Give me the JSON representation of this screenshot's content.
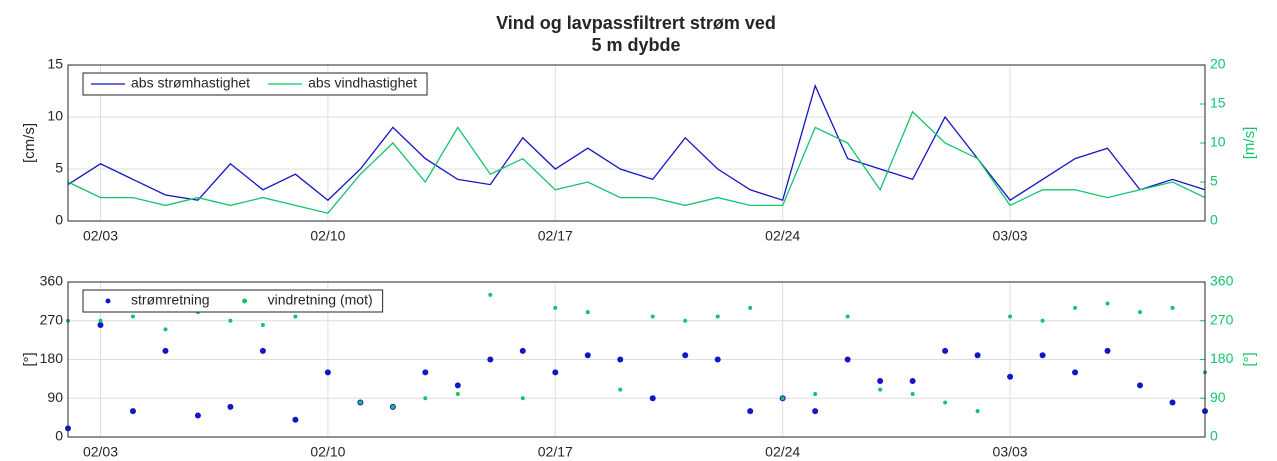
{
  "chart_data": [
    {
      "type": "line",
      "title": [
        "Vind og lavpassfiltrert strøm ved",
        "5 m dybde"
      ],
      "ylabel": "[cm/s]",
      "y2label": "[m/s]",
      "x": [
        "02/02",
        "02/03",
        "02/04",
        "02/05",
        "02/06",
        "02/07",
        "02/08",
        "02/09",
        "02/10",
        "02/11",
        "02/12",
        "02/13",
        "02/14",
        "02/15",
        "02/16",
        "02/17",
        "02/18",
        "02/19",
        "02/20",
        "02/21",
        "02/22",
        "02/23",
        "02/24",
        "02/25",
        "02/26",
        "02/27",
        "02/28",
        "03/01",
        "03/02",
        "03/03",
        "03/04",
        "03/05",
        "03/06",
        "03/07",
        "03/08",
        "03/09"
      ],
      "xlim": [
        "02/02",
        "03/09"
      ],
      "xticks": [
        "02/03",
        "02/10",
        "02/17",
        "02/24",
        "03/03"
      ],
      "ylim": [
        0,
        15
      ],
      "yticks": [
        0,
        5,
        10,
        15
      ],
      "y2lim": [
        0,
        20
      ],
      "y2ticks": [
        0,
        5,
        10,
        15,
        20
      ],
      "grid": true,
      "legend": "northwest",
      "series": [
        {
          "name": "abs strømhastighet",
          "color": "#1414c8",
          "values": [
            3.5,
            5.5,
            4,
            2.5,
            2,
            5.5,
            3,
            4.5,
            2,
            5,
            9,
            6,
            4,
            3.5,
            8,
            5,
            7,
            5,
            4,
            8,
            5,
            3,
            2,
            13,
            6,
            5,
            4,
            10,
            6,
            2,
            4,
            6,
            7,
            3,
            4,
            3
          ]
        },
        {
          "name": "abs vindhastighet",
          "color": "#12c46c",
          "axis": "y2",
          "values": [
            5,
            3,
            3,
            2,
            3,
            2,
            3,
            2,
            1,
            6,
            10,
            5,
            12,
            6,
            8,
            4,
            5,
            3,
            3,
            2,
            3,
            2,
            2,
            12,
            10,
            4,
            14,
            10,
            8,
            2,
            4,
            4,
            3,
            4,
            5,
            3
          ]
        }
      ]
    },
    {
      "type": "scatter",
      "ylabel": "[°]",
      "y2label": "[°]",
      "x": [
        "02/02",
        "02/03",
        "02/04",
        "02/05",
        "02/06",
        "02/07",
        "02/08",
        "02/09",
        "02/10",
        "02/11",
        "02/12",
        "02/13",
        "02/14",
        "02/15",
        "02/16",
        "02/17",
        "02/18",
        "02/19",
        "02/20",
        "02/21",
        "02/22",
        "02/23",
        "02/24",
        "02/25",
        "02/26",
        "02/27",
        "02/28",
        "03/01",
        "03/02",
        "03/03",
        "03/04",
        "03/05",
        "03/06",
        "03/07",
        "03/08",
        "03/09"
      ],
      "xlim": [
        "02/02",
        "03/09"
      ],
      "xticks": [
        "02/03",
        "02/10",
        "02/17",
        "02/24",
        "03/03"
      ],
      "ylim": [
        0,
        360
      ],
      "yticks": [
        0,
        90,
        180,
        270,
        360
      ],
      "y2lim": [
        0,
        360
      ],
      "y2ticks": [
        0,
        90,
        180,
        270,
        360
      ],
      "grid": true,
      "legend": "northwest",
      "series": [
        {
          "name": "strømretning",
          "color": "#1414c8",
          "values": [
            20,
            260,
            60,
            200,
            50,
            70,
            200,
            40,
            150,
            80,
            70,
            150,
            120,
            180,
            200,
            150,
            190,
            180,
            90,
            190,
            180,
            60,
            90,
            60,
            180,
            130,
            130,
            200,
            190,
            140,
            190,
            150,
            200,
            120,
            80,
            60
          ]
        },
        {
          "name": "vindretning (mot)",
          "color": "#12c46c",
          "axis": "y2",
          "values": [
            270,
            270,
            280,
            250,
            290,
            270,
            260,
            280,
            300,
            80,
            70,
            90,
            100,
            330,
            90,
            300,
            290,
            110,
            280,
            270,
            280,
            300,
            90,
            100,
            280,
            110,
            100,
            80,
            60,
            280,
            270,
            300,
            310,
            290,
            300,
            150
          ]
        }
      ]
    }
  ]
}
